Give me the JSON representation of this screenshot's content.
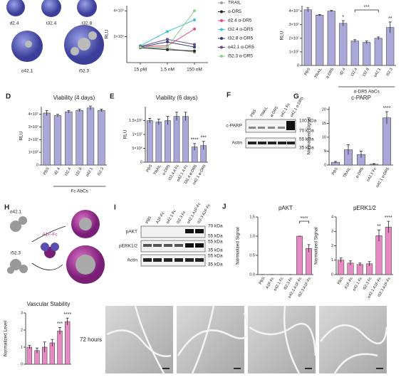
{
  "chart_data": [
    {
      "type": "line",
      "ylabel": "RLU",
      "categories": [
        "15 pM",
        "1.5 nM",
        "150 nM"
      ],
      "ylim": [
        0,
        440000
      ],
      "yticks": [
        {
          "value": 200000,
          "label": "2×10⁵"
        },
        {
          "value": 400000,
          "label": "4×10⁵"
        }
      ],
      "series": [
        {
          "name": "TRAIL",
          "color": "#a0a0a0",
          "values": [
            120000,
            110000,
            80000
          ]
        },
        {
          "name": "α-DR5",
          "color": "#222222",
          "values": [
            115000,
            100000,
            90000
          ]
        },
        {
          "name": "d2.4 α-DR5",
          "color": "#e0507a",
          "values": [
            125000,
            130000,
            260000
          ]
        },
        {
          "name": "t32.4 α-DR5",
          "color": "#3cc4d8",
          "values": [
            130000,
            240000,
            330000
          ]
        },
        {
          "name": "t32.8 α-DR5",
          "color": "#2a3f7a",
          "values": [
            120000,
            160000,
            120000
          ]
        },
        {
          "name": "o42.1 α-DR5",
          "color": "#6a4a8a",
          "values": [
            125000,
            180000,
            140000
          ]
        },
        {
          "name": "i52.3 α-DR5",
          "color": "#8fd08a",
          "values": [
            118000,
            120000,
            400000
          ]
        }
      ]
    },
    {
      "type": "bar",
      "ylabel": "RLU",
      "color": "#a9a8d8",
      "group_label": "α-DR5 AbCs",
      "categories": [
        "PBS",
        "TRAIL",
        "α-DR5",
        "d2.4",
        "t32.4",
        "t32.8",
        "o42.1",
        "i52.3"
      ],
      "values": [
        41000000,
        37000000,
        40000000,
        31000000,
        18000000,
        17000000,
        20000000,
        28000000
      ],
      "errors": [
        1500000,
        500000,
        500000,
        2000000,
        1000000,
        1000000,
        1000000,
        4000000
      ],
      "significance": [
        null,
        null,
        null,
        "*",
        null,
        "***",
        null,
        "**"
      ],
      "ylim": [
        0,
        44000000
      ],
      "yticks": [
        0,
        {
          "value": 10000000,
          "label": "1×10⁷"
        },
        {
          "value": 20000000,
          "label": "2×10⁷"
        },
        {
          "value": 30000000,
          "label": "3×10⁷"
        },
        {
          "value": 40000000,
          "label": "4×10⁷"
        }
      ]
    },
    {
      "type": "bar",
      "panel": "D",
      "title": "Viability (4 days)",
      "ylabel": "RLU",
      "color": "#a9a8d8",
      "group_label": "Fc AbCs",
      "categories": [
        "PBS",
        "d2.4",
        "t32.4",
        "t32.8",
        "o42.1",
        "i52.3"
      ],
      "values": [
        41000000,
        39000000,
        42000000,
        43000000,
        45000000,
        43000000
      ],
      "errors": [
        2000000,
        1000000,
        1000000,
        1000000,
        1500000,
        1000000
      ],
      "ylim": [
        0,
        46000000
      ],
      "yticks": [
        0,
        {
          "value": 10000000,
          "label": "1×10⁷"
        },
        {
          "value": 20000000,
          "label": "2×10⁷"
        },
        {
          "value": 30000000,
          "label": "3×10⁷"
        },
        {
          "value": 40000000,
          "label": "4×10⁷"
        }
      ]
    },
    {
      "type": "bar",
      "panel": "E",
      "title": "Viability (6 days)",
      "ylabel": "RLU",
      "color": "#a9a8d8",
      "categories": [
        "PBS",
        "TRAIL",
        "α-DR5",
        "t32.4 A Fc",
        "o42.1 A Fc",
        "t32.4 α-DR5",
        "o42.1 α-DR5"
      ],
      "values": [
        15000000,
        14500000,
        15000000,
        16500000,
        16500000,
        5500000,
        6000000
      ],
      "errors": [
        800000,
        1000000,
        1500000,
        1500000,
        1500000,
        1200000,
        1500000
      ],
      "significance": [
        null,
        null,
        null,
        null,
        null,
        "****",
        "***"
      ],
      "ylim": [
        0,
        20000000
      ],
      "yticks": [
        0,
        {
          "value": 5000000,
          "label": "5×10⁶"
        },
        {
          "value": 10000000,
          "label": "1×10⁷"
        },
        {
          "value": 15000000,
          "label": "1.5×10⁷"
        }
      ]
    },
    {
      "type": "bar",
      "panel": "G",
      "title": "c-PARP",
      "ylabel": "Normalized Signal",
      "color": "#a9a8d8",
      "categories": [
        "PBS",
        "TRAIL",
        "α-DR5",
        "o42.1 Fc",
        "o42.1 α-DR5"
      ],
      "values": [
        1,
        5.5,
        3.8,
        0.3,
        17
      ],
      "errors": [
        0.3,
        1.8,
        1.2,
        0.2,
        2.2
      ],
      "significance": [
        null,
        null,
        null,
        null,
        "****"
      ],
      "ylim": [
        0,
        21
      ],
      "yticks": [
        0,
        5,
        10,
        15,
        20
      ]
    },
    {
      "type": "bar",
      "panel": "J",
      "title": "pAKT",
      "ylabel": "Normalized Signal",
      "color": "#e58ac2",
      "categories": [
        "PBS",
        "A1F-Fc",
        "o42.1 Fc",
        "i52.3 Fc",
        "o42.1 A1F-Fc",
        "i52.3 A1F-Fc"
      ],
      "values": [
        0,
        0,
        0,
        0,
        1.0,
        0.68
      ],
      "errors": [
        0,
        0,
        0,
        0,
        0,
        0.1
      ],
      "significance": [
        null,
        null,
        null,
        null,
        null,
        "****"
      ],
      "ylim": [
        0,
        1.5
      ],
      "yticks": [
        {
          "value": 0,
          "label": "0.0"
        },
        0.5,
        {
          "value": 1,
          "label": "1.0"
        },
        1.5
      ]
    },
    {
      "type": "bar",
      "title": "pERK1/2",
      "ylabel": "Normalized Signal",
      "color": "#e58ac2",
      "categories": [
        "PBS",
        "A1F-Fc",
        "o42.1 Fc",
        "i52.3 Fc",
        "o42.1 A1F-Fc",
        "i52.3 A1F-Fc"
      ],
      "values": [
        1,
        0.8,
        0.7,
        0.75,
        2.7,
        3.3
      ],
      "errors": [
        0.15,
        0.15,
        0.1,
        0.15,
        0.4,
        0.4
      ],
      "significance": [
        null,
        null,
        null,
        null,
        "**",
        "****"
      ],
      "ylim": [
        0,
        4
      ],
      "yticks": [
        0,
        1,
        2,
        3,
        4
      ]
    },
    {
      "type": "bar",
      "panel": "K",
      "title": "Vascular Stability",
      "ylabel": "Normalized Level",
      "color": "#e58ac2",
      "categories": [
        null,
        null,
        null,
        null,
        null,
        null
      ],
      "values": [
        1,
        0.8,
        1.0,
        1.25,
        1.95,
        2.5
      ],
      "errors": [
        0.1,
        0.15,
        0.3,
        0.2,
        0.2,
        0.2
      ],
      "significance": [
        null,
        null,
        null,
        null,
        "***",
        "****"
      ],
      "ylim": [
        0,
        3
      ],
      "yticks": [
        0,
        1,
        2,
        3
      ]
    }
  ],
  "panels": {
    "structures": [
      "d2.4",
      "t32.4",
      "t32.8",
      "o42.1",
      "i52.3"
    ],
    "F": {
      "letter": "F",
      "lanes": [
        "PBS",
        "TRAIL",
        "α-DR5",
        "o42.1 Fc",
        "o42.1 α-DR5"
      ],
      "rows": [
        "c-PARP",
        "Actin"
      ],
      "sizes": [
        "100 kDa",
        "70 kDa",
        "55 kDa",
        "35 kDa"
      ]
    },
    "H": {
      "letter": "H",
      "labels": [
        "o42.1",
        "A1F-Fc",
        "i52.3"
      ]
    },
    "I": {
      "letter": "I",
      "lanes": [
        "PBS",
        "A1F-Fc",
        "o42.1 Fc",
        "i52.3 Fc",
        "o42.1 A1F-Fc",
        "i52.3 A1F-Fc"
      ],
      "rows": [
        "pAKT",
        "pERK1/2",
        "Actin"
      ],
      "sizes": [
        "70 kDa",
        "55 kDa",
        "55 kDa",
        "35 kDa",
        "55 kDa",
        "35 kDa"
      ]
    },
    "time": "72 hours"
  }
}
